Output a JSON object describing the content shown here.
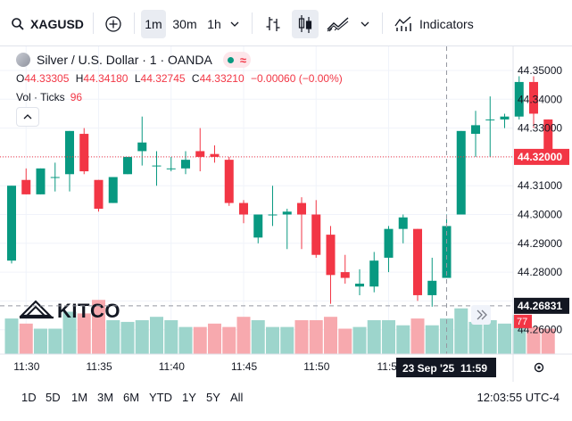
{
  "toolbar": {
    "symbol": "XAGUSD",
    "search_icon": "search-icon",
    "add_icon": "plus-circle-icon",
    "intervals": [
      "1m",
      "30m",
      "1h"
    ],
    "active_interval": "1m",
    "indicators_label": "Indicators"
  },
  "legend": {
    "title": "Silver / U.S. Dollar · 1 · OANDA",
    "open_label": "O",
    "open": "44.33305",
    "high_label": "H",
    "high": "44.34180",
    "low_label": "L",
    "low": "44.32745",
    "close_label": "C",
    "close": "44.33210",
    "change": "−0.00060 (−0.00%)",
    "vol_label": "Vol · Ticks",
    "vol_value": "96"
  },
  "colors": {
    "up": "#089981",
    "down": "#f23645",
    "up_vol": "#9dd5cc",
    "down_vol": "#f7a9ae"
  },
  "chart_data": {
    "type": "candlestick",
    "x_ticks": [
      "11:30",
      "11:35",
      "11:40",
      "11:45",
      "11:50",
      "11:55"
    ],
    "y_ticks": [
      "44.35000",
      "44.34000",
      "44.33000",
      "44.32000",
      "44.31000",
      "44.30000",
      "44.29000",
      "44.28000",
      "44.27000",
      "44.26000"
    ],
    "ylim": [
      44.255,
      44.355
    ],
    "current_price": "44.32000",
    "crosshair_price": "44.26831",
    "crosshair_time": "23 Sep '25",
    "crosshair_clock": "11:59",
    "volume_label": "77",
    "candles": [
      {
        "o": 44.284,
        "h": 44.31,
        "l": 44.283,
        "c": 44.31,
        "v": 42
      },
      {
        "o": 44.312,
        "h": 44.316,
        "l": 44.307,
        "c": 44.307,
        "v": 36
      },
      {
        "o": 44.307,
        "h": 44.316,
        "l": 44.307,
        "c": 44.316,
        "v": 30
      },
      {
        "o": 44.313,
        "h": 44.318,
        "l": 44.308,
        "c": 44.313,
        "v": 30
      },
      {
        "o": 44.314,
        "h": 44.329,
        "l": 44.308,
        "c": 44.329,
        "v": 50
      },
      {
        "o": 44.328,
        "h": 44.33,
        "l": 44.314,
        "c": 44.315,
        "v": 48
      },
      {
        "o": 44.312,
        "h": 44.312,
        "l": 44.301,
        "c": 44.302,
        "v": 64
      },
      {
        "o": 44.304,
        "h": 44.313,
        "l": 44.304,
        "c": 44.313,
        "v": 40
      },
      {
        "o": 44.314,
        "h": 44.319,
        "l": 44.314,
        "c": 44.32,
        "v": 38
      },
      {
        "o": 44.322,
        "h": 44.334,
        "l": 44.317,
        "c": 44.325,
        "v": 40
      },
      {
        "o": 44.317,
        "h": 44.322,
        "l": 44.31,
        "c": 44.317,
        "v": 44
      },
      {
        "o": 44.316,
        "h": 44.32,
        "l": 44.315,
        "c": 44.316,
        "v": 40
      },
      {
        "o": 44.316,
        "h": 44.322,
        "l": 44.314,
        "c": 44.319,
        "v": 32
      },
      {
        "o": 44.322,
        "h": 44.33,
        "l": 44.315,
        "c": 44.32,
        "v": 32
      },
      {
        "o": 44.321,
        "h": 44.324,
        "l": 44.318,
        "c": 44.32,
        "v": 36
      },
      {
        "o": 44.319,
        "h": 44.32,
        "l": 44.303,
        "c": 44.304,
        "v": 32
      },
      {
        "o": 44.304,
        "h": 44.305,
        "l": 44.297,
        "c": 44.3,
        "v": 44
      },
      {
        "o": 44.292,
        "h": 44.3,
        "l": 44.29,
        "c": 44.3,
        "v": 40
      },
      {
        "o": 44.3,
        "h": 44.31,
        "l": 44.296,
        "c": 44.3,
        "v": 32
      },
      {
        "o": 44.3,
        "h": 44.302,
        "l": 44.288,
        "c": 44.301,
        "v": 32
      },
      {
        "o": 44.304,
        "h": 44.306,
        "l": 44.288,
        "c": 44.3,
        "v": 40
      },
      {
        "o": 44.3,
        "h": 44.305,
        "l": 44.285,
        "c": 44.286,
        "v": 40
      },
      {
        "o": 44.293,
        "h": 44.296,
        "l": 44.269,
        "c": 44.279,
        "v": 44
      },
      {
        "o": 44.28,
        "h": 44.286,
        "l": 44.276,
        "c": 44.278,
        "v": 30
      },
      {
        "o": 44.275,
        "h": 44.281,
        "l": 44.272,
        "c": 44.276,
        "v": 32
      },
      {
        "o": 44.275,
        "h": 44.287,
        "l": 44.273,
        "c": 44.284,
        "v": 40
      },
      {
        "o": 44.285,
        "h": 44.296,
        "l": 44.28,
        "c": 44.295,
        "v": 40
      },
      {
        "o": 44.295,
        "h": 44.3,
        "l": 44.29,
        "c": 44.299,
        "v": 34
      },
      {
        "o": 44.295,
        "h": 44.295,
        "l": 44.27,
        "c": 44.272,
        "v": 42
      },
      {
        "o": 44.272,
        "h": 44.285,
        "l": 44.268,
        "c": 44.277,
        "v": 34
      },
      {
        "o": 44.278,
        "h": 44.3,
        "l": 44.278,
        "c": 44.296,
        "v": 42
      },
      {
        "o": 44.3,
        "h": 44.329,
        "l": 44.3,
        "c": 44.329,
        "v": 54
      },
      {
        "o": 44.328,
        "h": 44.336,
        "l": 44.32,
        "c": 44.331,
        "v": 38
      },
      {
        "o": 44.333,
        "h": 44.341,
        "l": 44.32,
        "c": 44.333,
        "v": 40
      },
      {
        "o": 44.333,
        "h": 44.335,
        "l": 44.33,
        "c": 44.334,
        "v": 36
      },
      {
        "o": 44.334,
        "h": 44.348,
        "l": 44.333,
        "c": 44.346,
        "v": 46
      },
      {
        "o": 44.346,
        "h": 44.348,
        "l": 44.33,
        "c": 44.335,
        "v": 32
      },
      {
        "o": 44.333,
        "h": 44.333,
        "l": 44.32,
        "c": 44.32,
        "v": 30
      }
    ]
  },
  "watermark": "KITCO",
  "bottom": {
    "ranges": [
      "1D",
      "5D",
      "1M",
      "3M",
      "6M",
      "YTD",
      "1Y",
      "5Y",
      "All"
    ],
    "clock": "12:03:55 UTC-4"
  }
}
